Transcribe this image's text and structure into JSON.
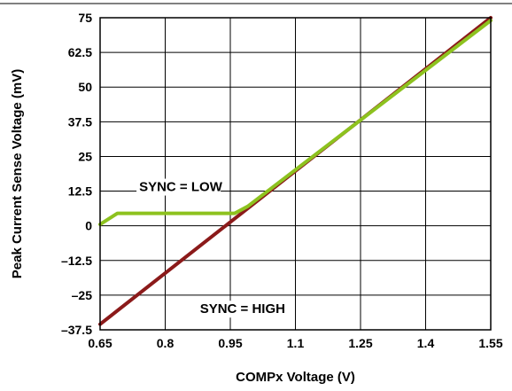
{
  "chart_data": {
    "type": "line",
    "title": "",
    "xlabel": "COMPx Voltage (V)",
    "ylabel": "Peak Current Sense Voltage (mV)",
    "xlim": [
      0.65,
      1.55
    ],
    "ylim": [
      -37.5,
      75
    ],
    "x_ticks": [
      0.65,
      0.8,
      0.95,
      1.1,
      1.25,
      1.4,
      1.55
    ],
    "x_tick_labels": [
      "0.65",
      "0.8",
      "0.95",
      "1.1",
      "1.25",
      "1.4",
      "1.55"
    ],
    "y_ticks": [
      75,
      62.5,
      50,
      37.5,
      25,
      12.5,
      0,
      -12.5,
      -25,
      -37.5
    ],
    "y_tick_labels": [
      "75",
      "62.5",
      "50",
      "37.5",
      "25",
      "12.5",
      "0",
      "–12.5",
      "–25",
      "–37.5"
    ],
    "grid": true,
    "series": [
      {
        "name": "SYNC = HIGH",
        "color": "#8b1a1a",
        "x": [
          0.65,
          1.55
        ],
        "y": [
          -35.5,
          75
        ]
      },
      {
        "name": "SYNC = LOW",
        "color": "#8dc21f",
        "x": [
          0.65,
          0.69,
          0.96,
          0.99,
          1.55
        ],
        "y": [
          0.5,
          4.5,
          4.5,
          7,
          74
        ]
      }
    ],
    "annotations": [
      {
        "text": "SYNC = LOW",
        "x": 0.74,
        "y": 12.5
      },
      {
        "text": "SYNC = HIGH",
        "x": 0.88,
        "y": -31.5
      }
    ]
  }
}
